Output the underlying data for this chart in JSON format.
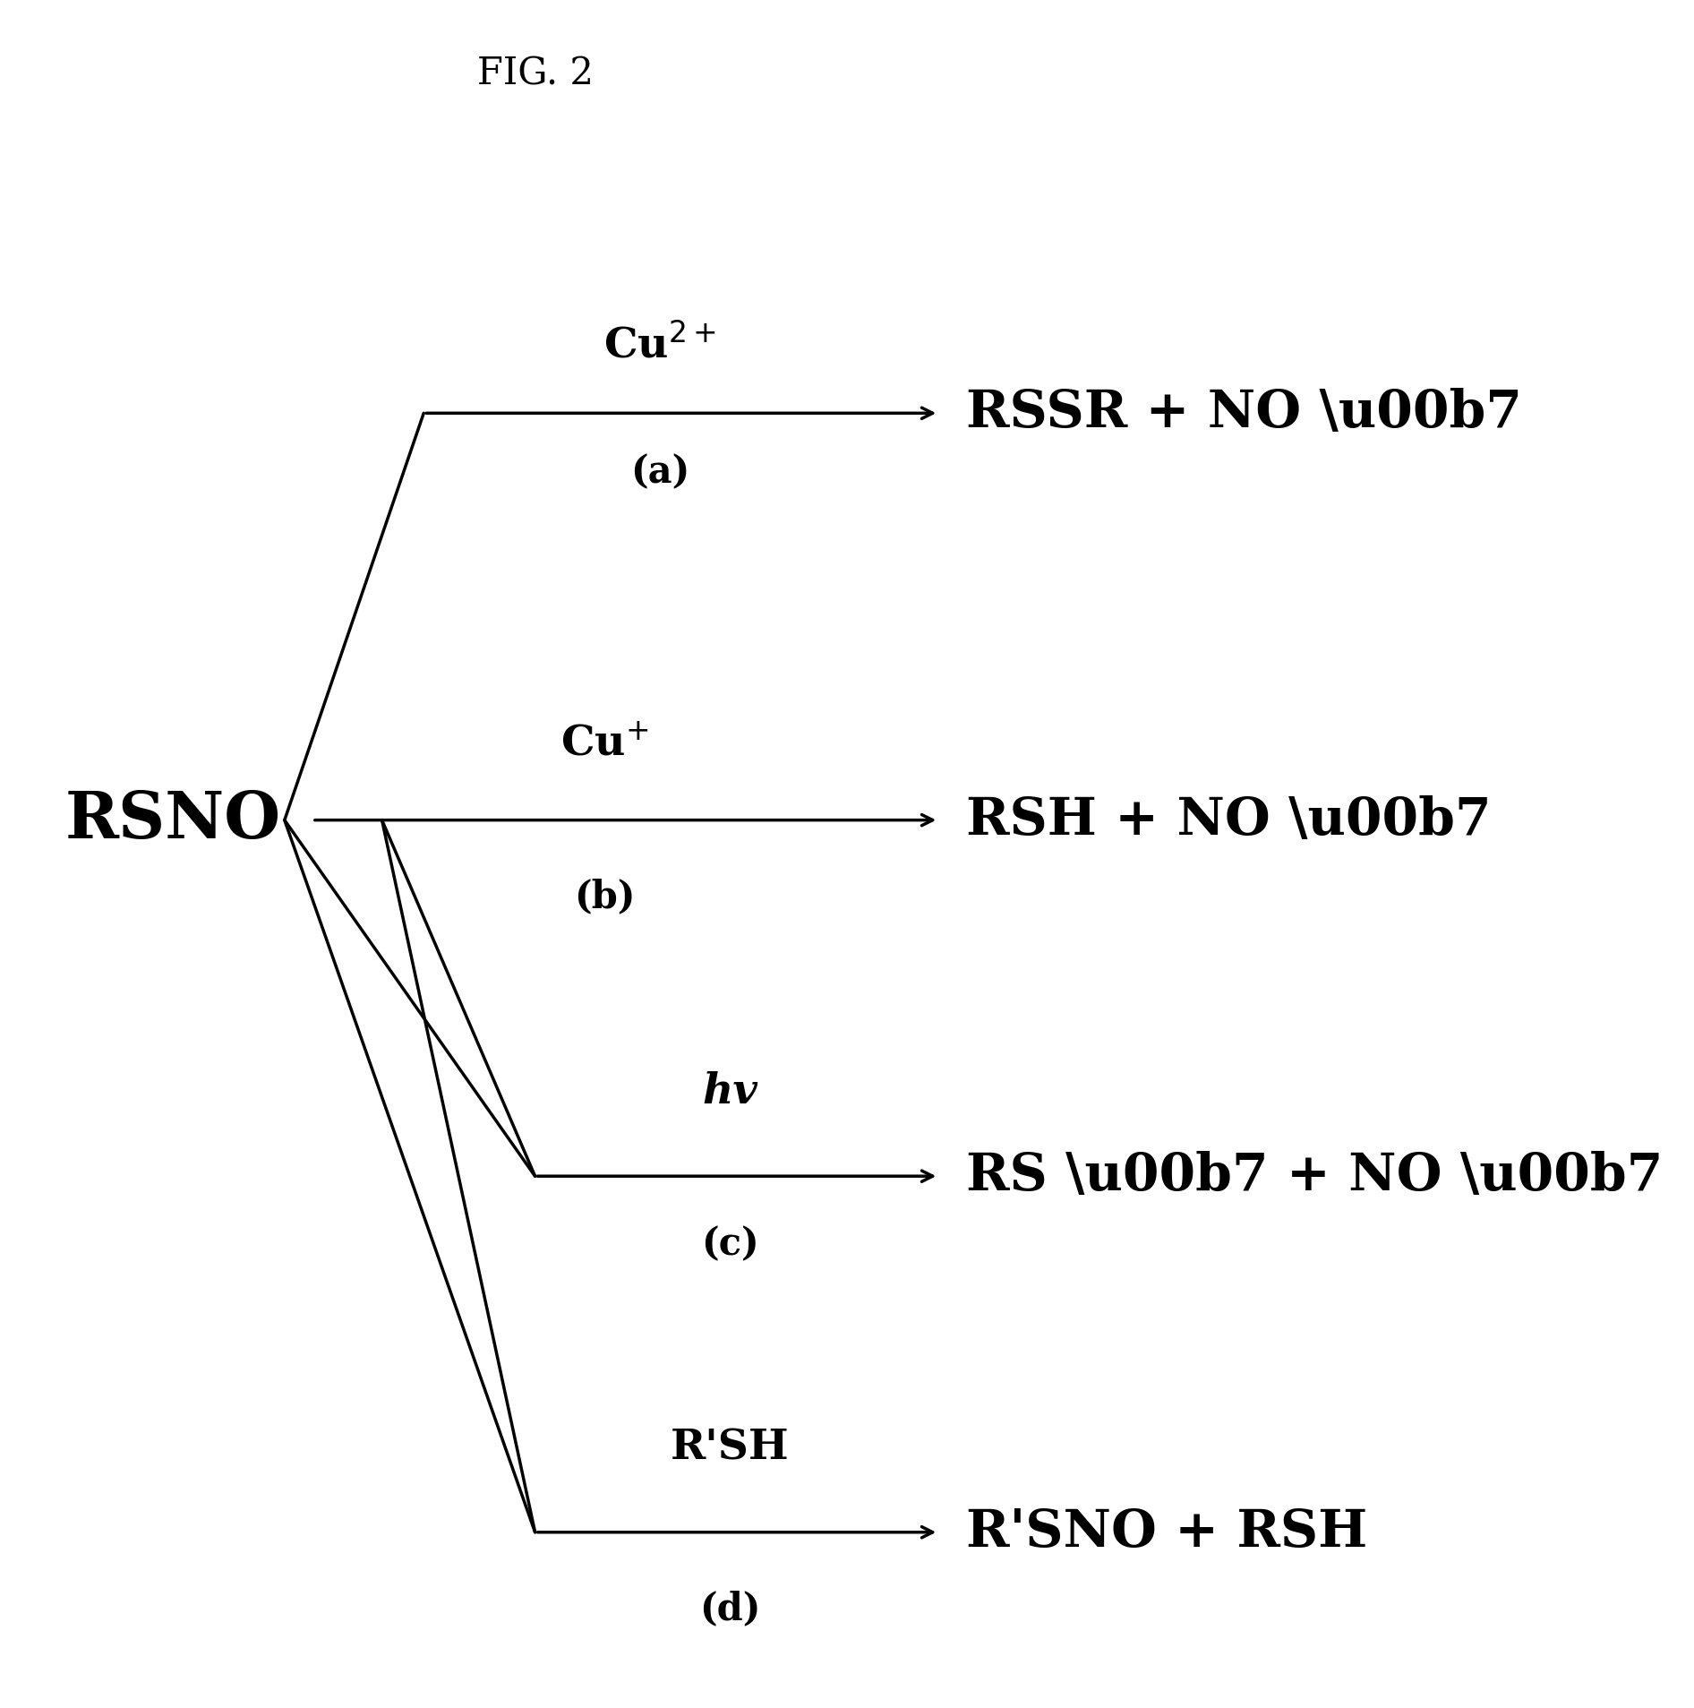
{
  "background_color": "#ffffff",
  "title": "FIG. 2",
  "title_fontsize": 30,
  "rsno_text": "RSNO",
  "rsno_fontsize": 52,
  "reactions": [
    {
      "id": "a",
      "label": "Cu$^{2+}$",
      "sublabel": "(a)",
      "product": "RSSR + NO ·",
      "type": "up_diagonal"
    },
    {
      "id": "b",
      "label": "Cu$^{+}$",
      "sublabel": "(b)",
      "product": "RSH + NO ·",
      "type": "horizontal"
    },
    {
      "id": "c",
      "label": "hv",
      "sublabel": "(c)",
      "product": "RS · + NO ·",
      "type": "down_diagonal",
      "double_line": true
    },
    {
      "id": "d",
      "label": "R'SH",
      "sublabel": "(d)",
      "product": "R'SNO + RSH",
      "type": "down_diagonal",
      "double_line": true
    }
  ],
  "label_fontsize": 34,
  "sublabel_fontsize": 30,
  "product_fontsize": 42,
  "arrow_linewidth": 2.5,
  "line_linewidth": 2.5
}
